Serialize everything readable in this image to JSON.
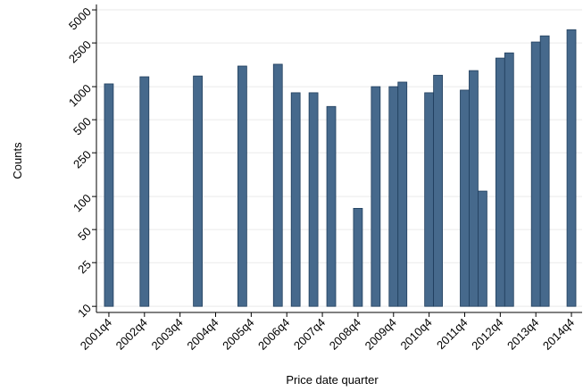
{
  "chart_data": {
    "type": "bar",
    "x_label": "Price date quarter",
    "y_label": "Counts",
    "x": [
      2001.75,
      2002.75,
      2004.25,
      2005.5,
      2006.5,
      2007.0,
      2007.5,
      2008.0,
      2008.75,
      2009.25,
      2009.75,
      2010.0,
      2010.75,
      2011.0,
      2011.75,
      2012.0,
      2012.25,
      2012.75,
      2013.0,
      2013.75,
      2014.0,
      2014.75
    ],
    "values": [
      1060,
      1230,
      1250,
      1540,
      1600,
      880,
      880,
      660,
      78,
      1000,
      1000,
      1100,
      880,
      1270,
      930,
      1400,
      112,
      1820,
      2030,
      2550,
      2900,
      3300
    ],
    "bar_width": 0.25,
    "base": 10,
    "color": "#46698c",
    "edge_color": "#1f3d5c",
    "log_y": true,
    "grid": true,
    "xlim": [
      2001.4,
      2015.05
    ],
    "ylim": [
      8.8,
      5600
    ],
    "xticks": [
      {
        "value": 2001.75,
        "label": "2001q4"
      },
      {
        "value": 2002.75,
        "label": "2002q4"
      },
      {
        "value": 2003.75,
        "label": "2003q4"
      },
      {
        "value": 2004.75,
        "label": "2004q4"
      },
      {
        "value": 2005.75,
        "label": "2005q4"
      },
      {
        "value": 2006.75,
        "label": "2006q4"
      },
      {
        "value": 2007.75,
        "label": "2007q4"
      },
      {
        "value": 2008.75,
        "label": "2008q4"
      },
      {
        "value": 2009.75,
        "label": "2009q4"
      },
      {
        "value": 2010.75,
        "label": "2010q4"
      },
      {
        "value": 2011.75,
        "label": "2011q4"
      },
      {
        "value": 2012.75,
        "label": "2012q4"
      },
      {
        "value": 2013.75,
        "label": "2013q4"
      },
      {
        "value": 2014.75,
        "label": "2014q4"
      }
    ],
    "yticks": [
      10,
      25,
      50,
      100,
      250,
      500,
      1000,
      2500,
      5000
    ]
  }
}
